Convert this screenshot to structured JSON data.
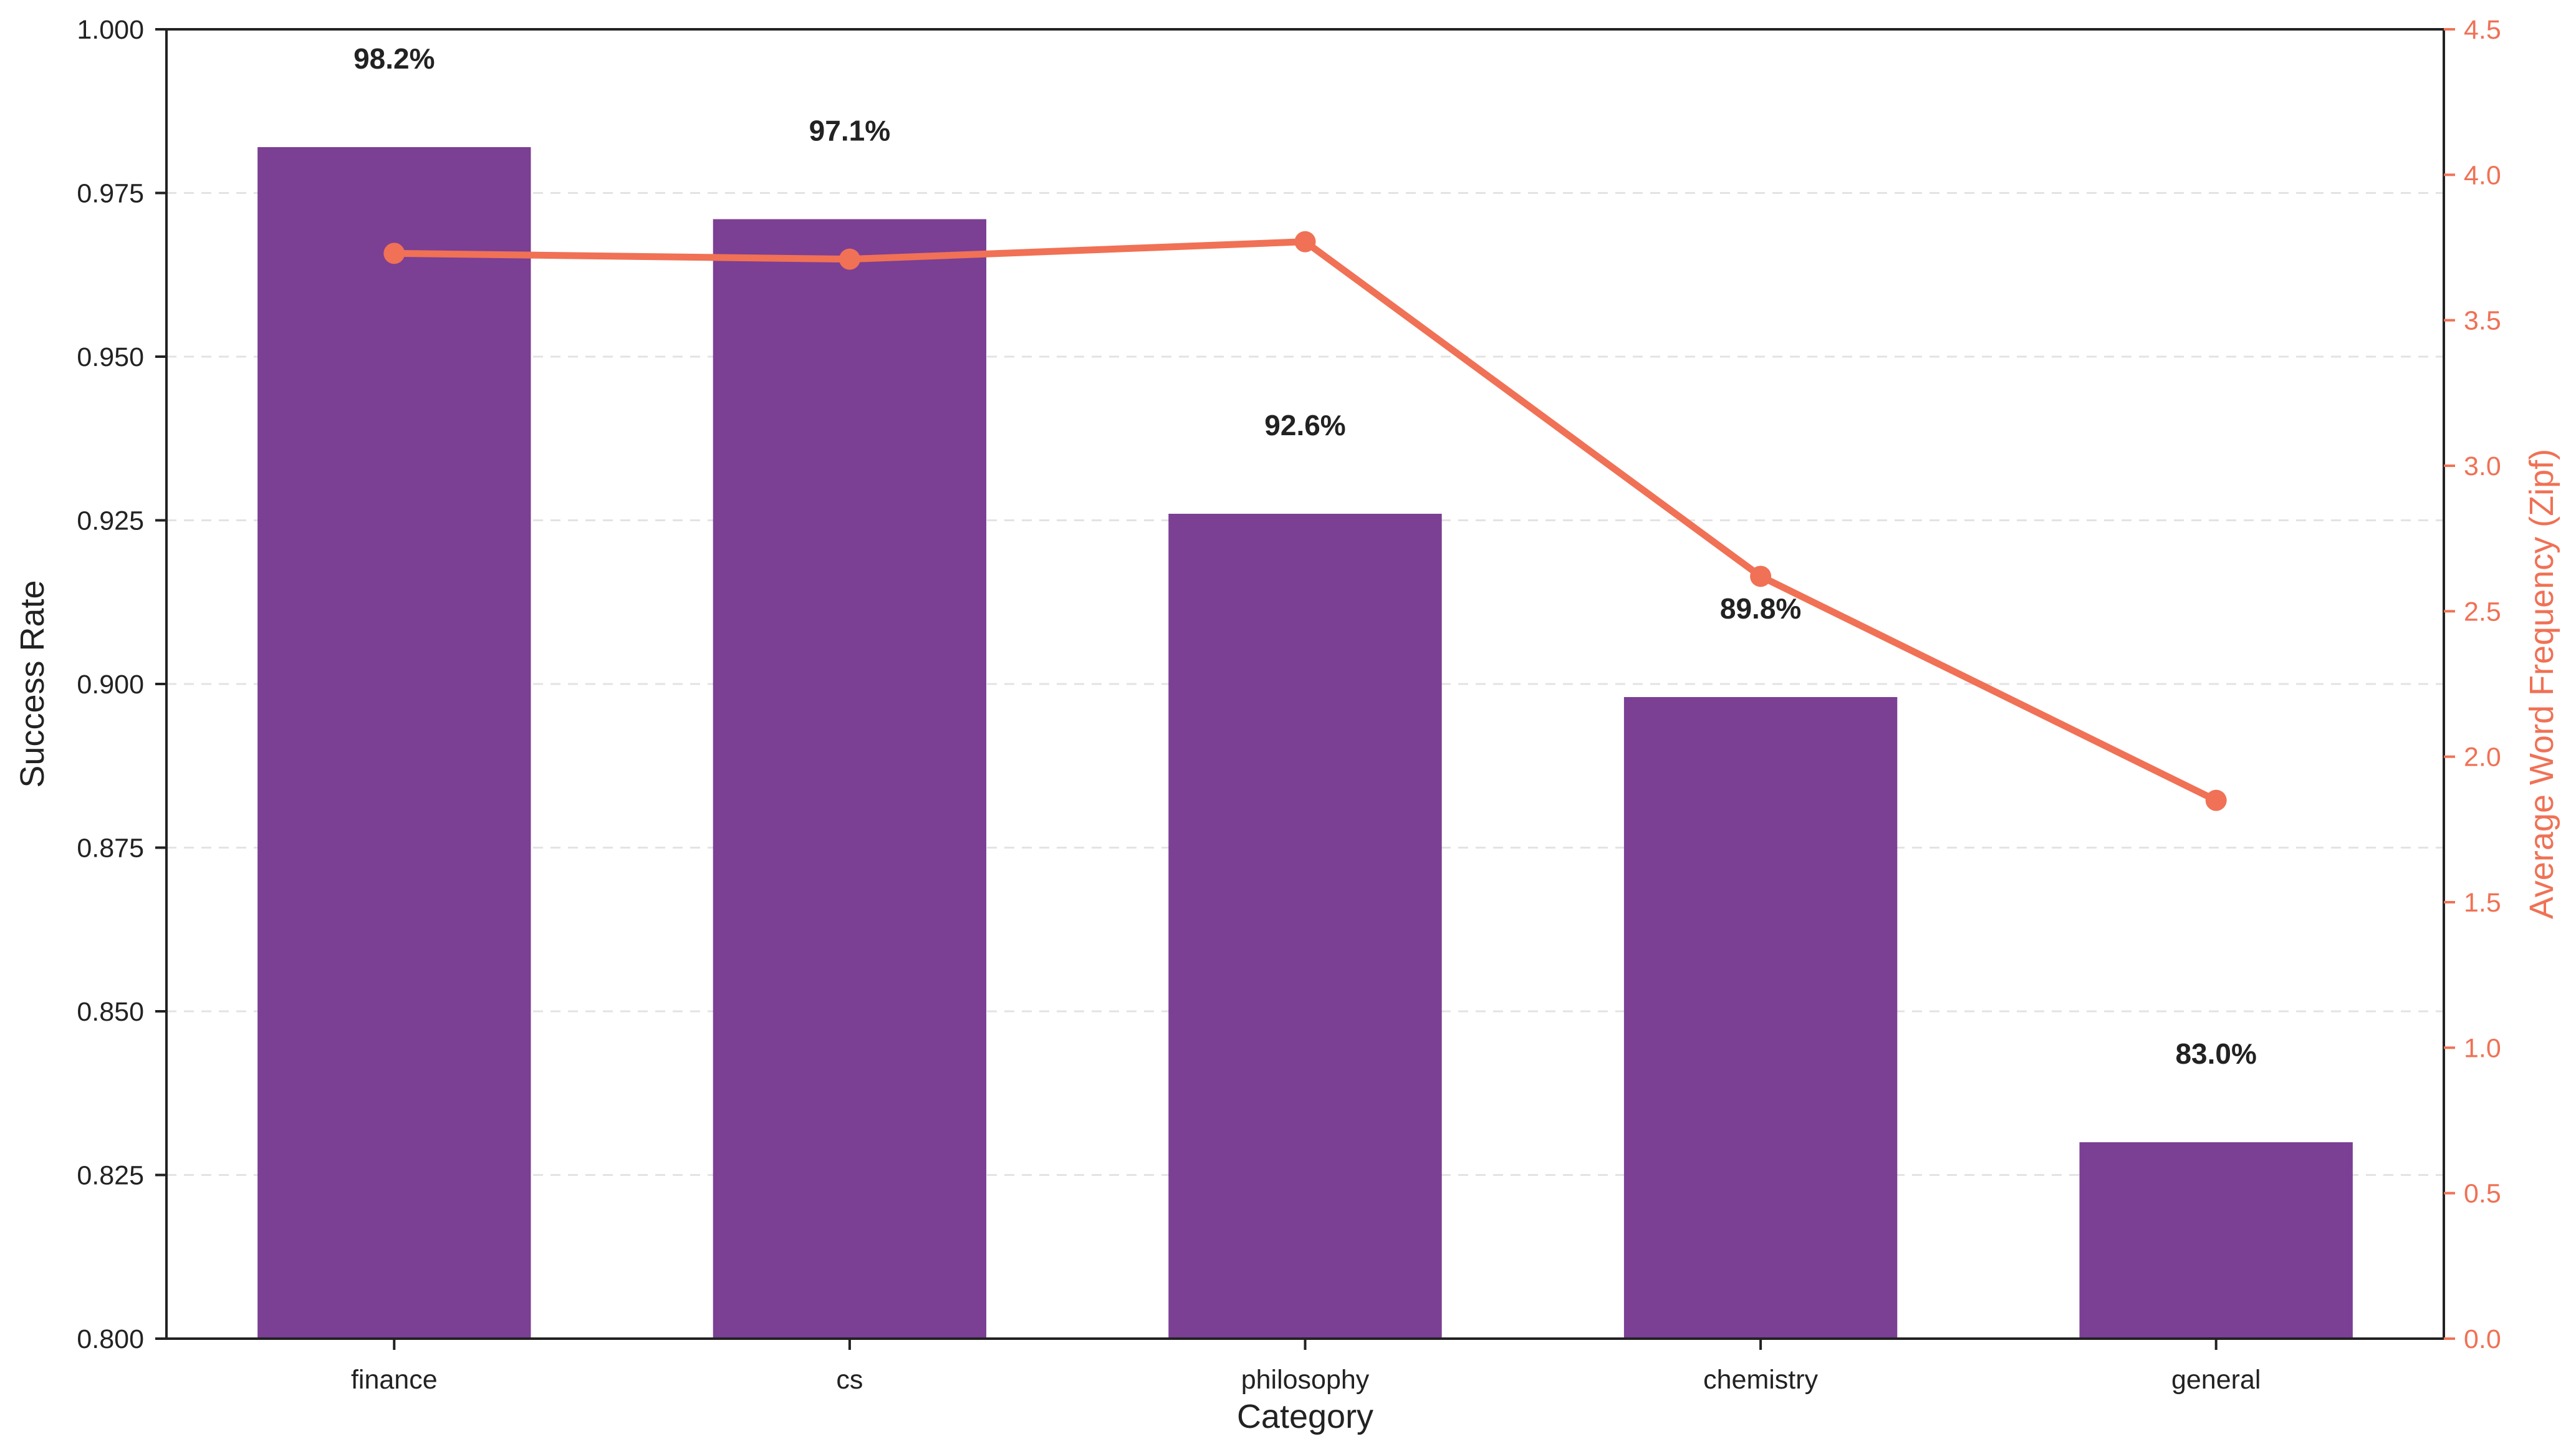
{
  "chart_data": {
    "type": "bar",
    "categories": [
      "finance",
      "cs",
      "philosophy",
      "chemistry",
      "general"
    ],
    "series": [
      {
        "type": "bar",
        "axis": "left",
        "values": [
          0.982,
          0.971,
          0.926,
          0.898,
          0.83
        ],
        "labels": [
          "98.2%",
          "97.1%",
          "92.6%",
          "89.8%",
          "83.0%"
        ],
        "color": "#7b3f94"
      },
      {
        "type": "line",
        "axis": "right",
        "values": [
          3.73,
          3.71,
          3.77,
          2.62,
          1.85
        ],
        "color": "#f07155"
      }
    ],
    "xlabel": "Category",
    "ylabel": "Success Rate",
    "y2label": "Average Word Frequency (Zipf)",
    "ylim": [
      0.8,
      1.0
    ],
    "y2lim": [
      0.0,
      4.5
    ],
    "yticks": [
      "0.800",
      "0.825",
      "0.850",
      "0.875",
      "0.900",
      "0.925",
      "0.950",
      "0.975",
      "1.000"
    ],
    "y2ticks": [
      "0.0",
      "0.5",
      "1.0",
      "1.5",
      "2.0",
      "2.5",
      "3.0",
      "3.5",
      "4.0",
      "4.5"
    ],
    "grid": "horizontal-dashed",
    "colors": {
      "bar": "#7b3f94",
      "line": "#f07155",
      "axis": "#222222",
      "grid": "#e3e3e3"
    }
  }
}
